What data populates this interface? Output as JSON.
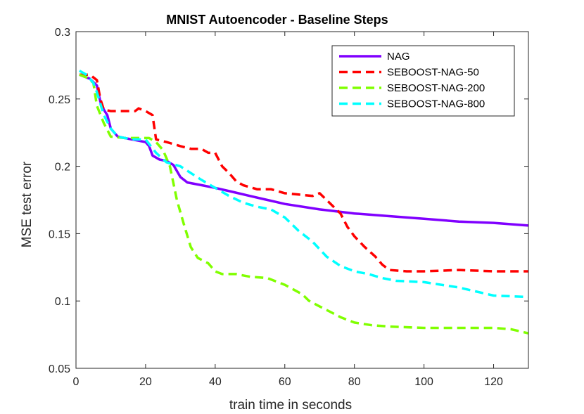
{
  "chart_data": {
    "type": "line",
    "title": "MNIST Autoencoder - Baseline Steps",
    "xlabel": "train time in seconds",
    "ylabel": "MSE test error",
    "xlim": [
      0,
      130
    ],
    "ylim": [
      0.05,
      0.3
    ],
    "xticks": [
      "0",
      "20",
      "40",
      "60",
      "80",
      "100",
      "120"
    ],
    "yticks": [
      "0.05",
      "0.1",
      "0.15",
      "0.2",
      "0.25",
      "0.3"
    ],
    "grid": false,
    "legend_position": "top-right",
    "series": [
      {
        "name": "NAG",
        "color": "#8000ff",
        "style": "solid",
        "points": [
          [
            1,
            0.268
          ],
          [
            4,
            0.265
          ],
          [
            6,
            0.26
          ],
          [
            7,
            0.248
          ],
          [
            8,
            0.242
          ],
          [
            9,
            0.238
          ],
          [
            10,
            0.228
          ],
          [
            12,
            0.222
          ],
          [
            14,
            0.221
          ],
          [
            16,
            0.22
          ],
          [
            18,
            0.219
          ],
          [
            20,
            0.218
          ],
          [
            21,
            0.215
          ],
          [
            22,
            0.208
          ],
          [
            24,
            0.205
          ],
          [
            26,
            0.204
          ],
          [
            28,
            0.201
          ],
          [
            30,
            0.192
          ],
          [
            32,
            0.188
          ],
          [
            36,
            0.186
          ],
          [
            40,
            0.184
          ],
          [
            45,
            0.181
          ],
          [
            50,
            0.178
          ],
          [
            55,
            0.175
          ],
          [
            60,
            0.172
          ],
          [
            70,
            0.168
          ],
          [
            80,
            0.165
          ],
          [
            90,
            0.163
          ],
          [
            100,
            0.161
          ],
          [
            110,
            0.159
          ],
          [
            120,
            0.158
          ],
          [
            130,
            0.156
          ]
        ]
      },
      {
        "name": "SEBOOST-NAG-50",
        "color": "#ff0000",
        "style": "dashed",
        "points": [
          [
            1,
            0.268
          ],
          [
            4,
            0.268
          ],
          [
            6,
            0.264
          ],
          [
            7,
            0.25
          ],
          [
            8,
            0.242
          ],
          [
            10,
            0.241
          ],
          [
            14,
            0.241
          ],
          [
            17,
            0.241
          ],
          [
            18,
            0.243
          ],
          [
            20,
            0.241
          ],
          [
            22,
            0.238
          ],
          [
            23,
            0.22
          ],
          [
            26,
            0.218
          ],
          [
            30,
            0.215
          ],
          [
            33,
            0.213
          ],
          [
            36,
            0.213
          ],
          [
            38,
            0.21
          ],
          [
            40,
            0.21
          ],
          [
            42,
            0.2
          ],
          [
            44,
            0.195
          ],
          [
            46,
            0.189
          ],
          [
            48,
            0.186
          ],
          [
            52,
            0.183
          ],
          [
            56,
            0.183
          ],
          [
            60,
            0.18
          ],
          [
            64,
            0.179
          ],
          [
            68,
            0.178
          ],
          [
            70,
            0.18
          ],
          [
            72,
            0.175
          ],
          [
            74,
            0.17
          ],
          [
            76,
            0.165
          ],
          [
            78,
            0.155
          ],
          [
            80,
            0.148
          ],
          [
            83,
            0.14
          ],
          [
            86,
            0.133
          ],
          [
            88,
            0.127
          ],
          [
            90,
            0.123
          ],
          [
            95,
            0.122
          ],
          [
            100,
            0.122
          ],
          [
            110,
            0.123
          ],
          [
            120,
            0.122
          ],
          [
            130,
            0.122
          ]
        ]
      },
      {
        "name": "SEBOOST-NAG-200",
        "color": "#80ff00",
        "style": "dashed",
        "points": [
          [
            1,
            0.268
          ],
          [
            3,
            0.266
          ],
          [
            5,
            0.262
          ],
          [
            6,
            0.245
          ],
          [
            8,
            0.232
          ],
          [
            10,
            0.222
          ],
          [
            14,
            0.221
          ],
          [
            18,
            0.221
          ],
          [
            21,
            0.221
          ],
          [
            23,
            0.218
          ],
          [
            25,
            0.212
          ],
          [
            27,
            0.2
          ],
          [
            29,
            0.175
          ],
          [
            31,
            0.157
          ],
          [
            33,
            0.14
          ],
          [
            35,
            0.132
          ],
          [
            38,
            0.128
          ],
          [
            40,
            0.122
          ],
          [
            42,
            0.12
          ],
          [
            46,
            0.12
          ],
          [
            50,
            0.118
          ],
          [
            55,
            0.117
          ],
          [
            60,
            0.112
          ],
          [
            65,
            0.105
          ],
          [
            67,
            0.1
          ],
          [
            70,
            0.096
          ],
          [
            73,
            0.092
          ],
          [
            76,
            0.088
          ],
          [
            80,
            0.084
          ],
          [
            85,
            0.082
          ],
          [
            90,
            0.081
          ],
          [
            100,
            0.08
          ],
          [
            110,
            0.08
          ],
          [
            120,
            0.08
          ],
          [
            125,
            0.079
          ],
          [
            130,
            0.076
          ]
        ]
      },
      {
        "name": "SEBOOST-NAG-800",
        "color": "#00ffff",
        "style": "dashed",
        "points": [
          [
            1,
            0.271
          ],
          [
            3,
            0.268
          ],
          [
            5,
            0.262
          ],
          [
            6,
            0.255
          ],
          [
            8,
            0.238
          ],
          [
            10,
            0.228
          ],
          [
            12,
            0.222
          ],
          [
            16,
            0.22
          ],
          [
            20,
            0.22
          ],
          [
            23,
            0.21
          ],
          [
            26,
            0.203
          ],
          [
            30,
            0.2
          ],
          [
            33,
            0.195
          ],
          [
            36,
            0.19
          ],
          [
            40,
            0.184
          ],
          [
            44,
            0.178
          ],
          [
            48,
            0.173
          ],
          [
            52,
            0.17
          ],
          [
            56,
            0.168
          ],
          [
            60,
            0.162
          ],
          [
            64,
            0.152
          ],
          [
            68,
            0.144
          ],
          [
            72,
            0.133
          ],
          [
            76,
            0.126
          ],
          [
            80,
            0.122
          ],
          [
            84,
            0.12
          ],
          [
            88,
            0.117
          ],
          [
            92,
            0.115
          ],
          [
            100,
            0.114
          ],
          [
            110,
            0.11
          ],
          [
            120,
            0.104
          ],
          [
            130,
            0.103
          ]
        ]
      }
    ]
  }
}
